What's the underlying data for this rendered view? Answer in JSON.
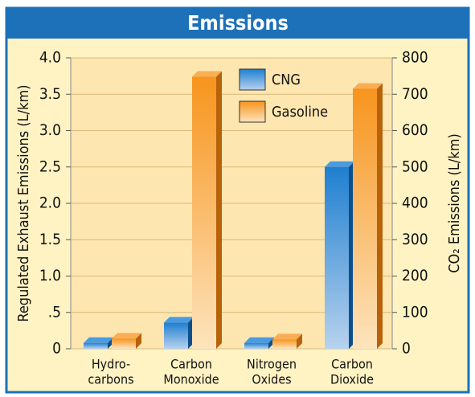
{
  "chart_data": {
    "type": "bar3d",
    "title": "Emissions",
    "categories": [
      [
        "Hydro-",
        "carbons"
      ],
      [
        "Carbon",
        "Monoxide"
      ],
      [
        "Nitrogen",
        "Oxides"
      ],
      [
        "Carbon",
        "Dioxide"
      ]
    ],
    "axis_by_category": [
      "y",
      "y",
      "y",
      "y2"
    ],
    "series": [
      {
        "name": "CNG",
        "color": "#1f7fd0",
        "values": [
          0.08,
          0.36,
          0.08,
          500
        ]
      },
      {
        "name": "Gasoline",
        "color": "#f7941d",
        "values": [
          0.14,
          3.74,
          0.13,
          715
        ]
      }
    ],
    "ylabel": "Regulated Exhaust Emissions (L/km)",
    "y2label": "CO₂ Emissions (L/km)",
    "ylim": [
      0,
      4.0
    ],
    "yticks": [
      0,
      {
        "value": 0.5,
        "label": ".5"
      },
      {
        "value": 1,
        "label": "1.0"
      },
      1.5,
      {
        "value": 2,
        "label": "2.0"
      },
      2.5,
      {
        "value": 3,
        "label": "3.0"
      },
      3.5,
      {
        "value": 4,
        "label": "4.0"
      }
    ],
    "y2lim": [
      0,
      800
    ],
    "y2ticks": [
      0,
      100,
      200,
      300,
      400,
      500,
      600,
      700,
      800
    ],
    "grid": true
  }
}
